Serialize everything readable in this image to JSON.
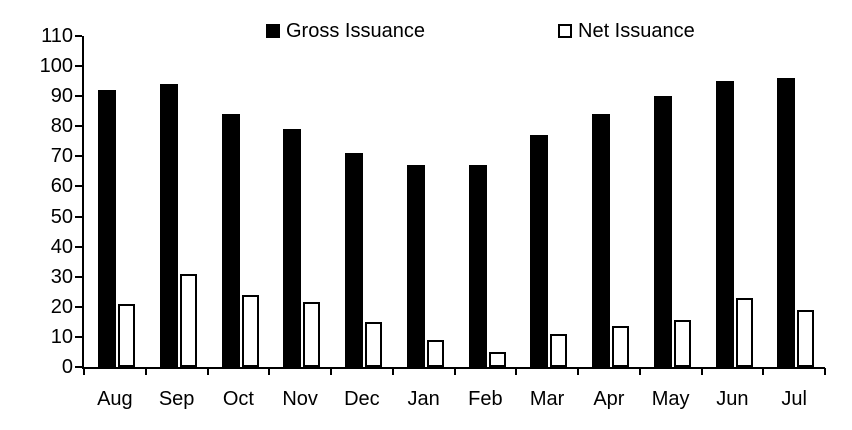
{
  "chart": {
    "background_color": "#ffffff",
    "axis_color": "#000000",
    "text_color": "#000000",
    "legend": [
      {
        "label": "Gross Issuance",
        "swatch": "filled-black-square"
      },
      {
        "label": "Net Issuance",
        "swatch": "white-square-black-outline"
      }
    ]
  },
  "chart_data": {
    "type": "bar",
    "title": "",
    "xlabel": "",
    "ylabel": "",
    "categories": [
      "Aug",
      "Sep",
      "Oct",
      "Nov",
      "Dec",
      "Jan",
      "Feb",
      "Mar",
      "Apr",
      "May",
      "Jun",
      "Jul"
    ],
    "series": [
      {
        "name": "Gross Issuance",
        "color": "#000000",
        "style": "solid",
        "values": [
          92,
          94,
          84,
          79,
          71,
          67,
          67,
          77,
          84,
          90,
          95,
          96
        ]
      },
      {
        "name": "Net Issuance",
        "color": "#ffffff",
        "border_color": "#000000",
        "style": "outlined",
        "values": [
          21,
          31,
          24,
          21.5,
          15,
          9,
          5,
          11,
          13.5,
          15.5,
          23,
          19
        ]
      }
    ],
    "ylim": [
      0,
      110
    ],
    "yticks": [
      0,
      10,
      20,
      30,
      40,
      50,
      60,
      70,
      80,
      90,
      100,
      110
    ],
    "grid": false,
    "legend_position": "top-center"
  }
}
